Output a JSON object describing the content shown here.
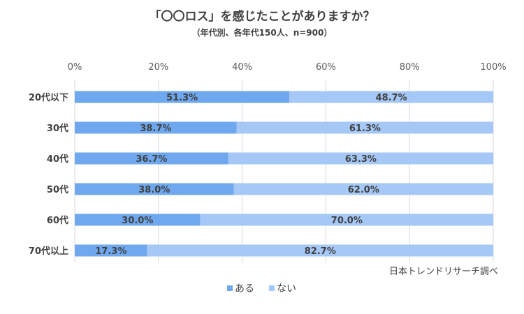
{
  "chart_data": {
    "type": "bar",
    "orientation": "horizontal",
    "stacked": "percent",
    "title": "「〇〇ロス」を感じたことがありますか？",
    "subtitle": "（年代別、各年代150人、n=900）",
    "categories": [
      "20代以下",
      "30代",
      "40代",
      "50代",
      "60代",
      "70代以上"
    ],
    "series": [
      {
        "name": "ある",
        "values": [
          51.3,
          38.7,
          36.7,
          38.0,
          30.0,
          17.3
        ],
        "labels": [
          "51.3%",
          "38.7%",
          "36.7%",
          "38.0%",
          "30.0%",
          "17.3%"
        ],
        "color": "#6fa8ee"
      },
      {
        "name": "ない",
        "values": [
          48.7,
          61.3,
          63.3,
          62.0,
          70.0,
          82.7
        ],
        "labels": [
          "48.7%",
          "61.3%",
          "63.3%",
          "62.0%",
          "70.0%",
          "82.7%"
        ],
        "color": "#a6c8f6"
      }
    ],
    "xlim": [
      0,
      100
    ],
    "x_ticks": [
      "0%",
      "20%",
      "40%",
      "60%",
      "80%",
      "100%"
    ],
    "grid": true,
    "legend_position": "bottom",
    "source": "日本トレンドリサーチ調べ"
  }
}
